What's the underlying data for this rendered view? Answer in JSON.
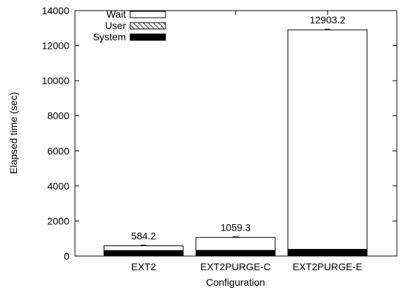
{
  "chart_data": {
    "type": "bar",
    "stacked": true,
    "xlabel": "Configuration",
    "ylabel": "Elapsed time (sec)",
    "ylim": [
      0,
      14000
    ],
    "yticks": [
      0,
      2000,
      4000,
      6000,
      8000,
      10000,
      12000,
      14000
    ],
    "categories": [
      "EXT2",
      "EXT2PURGE-C",
      "EXT2PURGE-E"
    ],
    "series": [
      {
        "name": "System",
        "values": [
          290,
          300,
          340
        ],
        "pattern": "solid",
        "color": "#000000"
      },
      {
        "name": "User",
        "values": [
          25,
          25,
          45
        ],
        "pattern": "hatched",
        "color": "#000000"
      },
      {
        "name": "Wait",
        "values": [
          269.2,
          734.3,
          12518.2
        ],
        "pattern": "empty",
        "color": "#ffffff"
      }
    ],
    "totals": [
      584.2,
      1059.3,
      12903.2
    ],
    "total_labels": [
      "584.2",
      "1059.3",
      "12903.2"
    ],
    "legend_placement": "top-left",
    "legend_order": [
      "Wait",
      "User",
      "System"
    ],
    "grid": false,
    "error_bars": true
  }
}
